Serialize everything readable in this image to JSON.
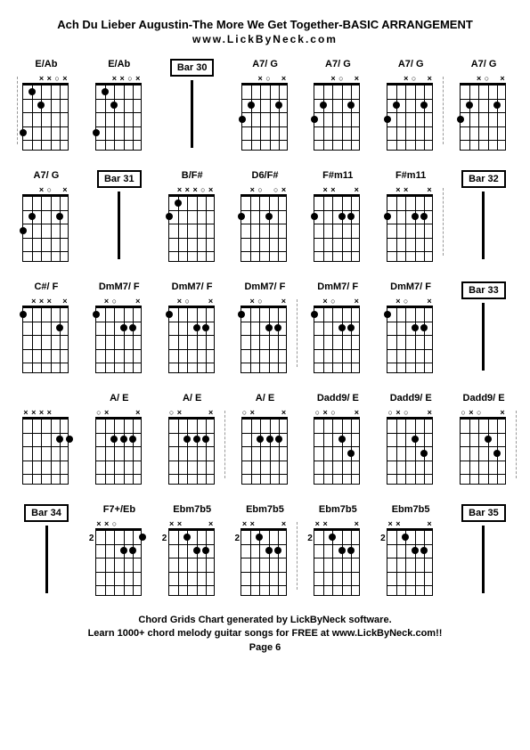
{
  "header": {
    "title": "Ach Du Lieber Augustin-The More We Get Together-BASIC ARRANGEMENT",
    "subtitle": "www.LickByNeck.com"
  },
  "footer": {
    "line1": "Chord Grids Chart generated by LickByNeck software.",
    "line2": "Learn 1000+ chord melody guitar songs for FREE at www.LickByNeck.com!!",
    "line3": "Page 6"
  },
  "rows": [
    [
      {
        "type": "chord",
        "label": "E/Ab",
        "marks": [
          "",
          "",
          "x",
          "x",
          "o",
          "x"
        ],
        "dots": [
          [
            1,
            4
          ],
          [
            2,
            1
          ],
          [
            3,
            2
          ]
        ],
        "dashLeft": true,
        "dashRight": false
      },
      {
        "type": "chord",
        "label": "E/Ab",
        "marks": [
          "",
          "",
          "x",
          "x",
          "o",
          "x"
        ],
        "dots": [
          [
            1,
            4
          ],
          [
            2,
            1
          ],
          [
            3,
            2
          ]
        ],
        "dashLeft": false,
        "dashRight": false
      },
      {
        "type": "bar",
        "label": "Bar 30"
      },
      {
        "type": "chord",
        "label": "A7/ G",
        "marks": [
          "",
          "",
          "x",
          "o",
          "",
          "x"
        ],
        "dots": [
          [
            1,
            3
          ],
          [
            2,
            2
          ],
          [
            5,
            2
          ]
        ],
        "dashLeft": false,
        "dashRight": false
      },
      {
        "type": "chord",
        "label": "A7/ G",
        "marks": [
          "",
          "",
          "x",
          "o",
          "",
          "x"
        ],
        "dots": [
          [
            1,
            3
          ],
          [
            2,
            2
          ],
          [
            5,
            2
          ]
        ],
        "dashLeft": false,
        "dashRight": false
      },
      {
        "type": "chord",
        "label": "A7/ G",
        "marks": [
          "",
          "",
          "x",
          "o",
          "",
          "x"
        ],
        "dots": [
          [
            1,
            3
          ],
          [
            2,
            2
          ],
          [
            5,
            2
          ]
        ],
        "dashLeft": false,
        "dashRight": true
      },
      {
        "type": "chord",
        "label": "A7/ G",
        "marks": [
          "",
          "",
          "x",
          "o",
          "",
          "x"
        ],
        "dots": [
          [
            1,
            3
          ],
          [
            2,
            2
          ],
          [
            5,
            2
          ]
        ],
        "dashLeft": false,
        "dashRight": false
      }
    ],
    [
      {
        "type": "chord",
        "label": "A7/ G",
        "marks": [
          "",
          "",
          "x",
          "o",
          "",
          "x"
        ],
        "dots": [
          [
            1,
            3
          ],
          [
            2,
            2
          ],
          [
            5,
            2
          ]
        ],
        "dashLeft": false,
        "dashRight": false
      },
      {
        "type": "bar",
        "label": "Bar 31"
      },
      {
        "type": "chord",
        "label": "B/F#",
        "marks": [
          "",
          "x",
          "x",
          "x",
          "o",
          "x"
        ],
        "dots": [
          [
            1,
            2
          ],
          [
            2,
            1
          ]
        ],
        "dashLeft": false,
        "dashRight": false
      },
      {
        "type": "chord",
        "label": "D6/F#",
        "marks": [
          "",
          "x",
          "o",
          "",
          "o",
          "x"
        ],
        "dots": [
          [
            1,
            2
          ],
          [
            4,
            2
          ]
        ],
        "dashLeft": false,
        "dashRight": false
      },
      {
        "type": "chord",
        "label": "F#m11",
        "marks": [
          "",
          "x",
          "x",
          "",
          "",
          "x"
        ],
        "dots": [
          [
            1,
            2
          ],
          [
            4,
            2
          ],
          [
            5,
            2
          ]
        ],
        "dashLeft": false,
        "dashRight": false
      },
      {
        "type": "chord",
        "label": "F#m11",
        "marks": [
          "",
          "x",
          "x",
          "",
          "",
          "x"
        ],
        "dots": [
          [
            1,
            2
          ],
          [
            4,
            2
          ],
          [
            5,
            2
          ]
        ],
        "dashLeft": false,
        "dashRight": true
      },
      {
        "type": "bar",
        "label": "Bar 32"
      }
    ],
    [
      {
        "type": "chord",
        "label": "C#/ F",
        "marks": [
          "",
          "x",
          "x",
          "x",
          "",
          "x"
        ],
        "dots": [
          [
            1,
            1
          ],
          [
            5,
            2
          ]
        ],
        "dashLeft": false,
        "dashRight": false
      },
      {
        "type": "chord",
        "label": "DmM7/ F",
        "marks": [
          "",
          "x",
          "o",
          "",
          "",
          "x"
        ],
        "dots": [
          [
            1,
            1
          ],
          [
            4,
            2
          ],
          [
            5,
            2
          ]
        ],
        "dashLeft": false,
        "dashRight": false
      },
      {
        "type": "chord",
        "label": "DmM7/ F",
        "marks": [
          "",
          "x",
          "o",
          "",
          "",
          "x"
        ],
        "dots": [
          [
            1,
            1
          ],
          [
            4,
            2
          ],
          [
            5,
            2
          ]
        ],
        "dashLeft": false,
        "dashRight": false
      },
      {
        "type": "chord",
        "label": "DmM7/ F",
        "marks": [
          "",
          "x",
          "o",
          "",
          "",
          "x"
        ],
        "dots": [
          [
            1,
            1
          ],
          [
            4,
            2
          ],
          [
            5,
            2
          ]
        ],
        "dashLeft": false,
        "dashRight": true
      },
      {
        "type": "chord",
        "label": "DmM7/ F",
        "marks": [
          "",
          "x",
          "o",
          "",
          "",
          "x"
        ],
        "dots": [
          [
            1,
            1
          ],
          [
            4,
            2
          ],
          [
            5,
            2
          ]
        ],
        "dashLeft": false,
        "dashRight": false
      },
      {
        "type": "chord",
        "label": "DmM7/ F",
        "marks": [
          "",
          "x",
          "o",
          "",
          "",
          "x"
        ],
        "dots": [
          [
            1,
            1
          ],
          [
            4,
            2
          ],
          [
            5,
            2
          ]
        ],
        "dashLeft": false,
        "dashRight": false
      },
      {
        "type": "bar",
        "label": "Bar 33"
      }
    ],
    [
      {
        "type": "chord",
        "label": "",
        "marks": [
          "x",
          "x",
          "x",
          "x",
          "",
          ""
        ],
        "dots": [
          [
            5,
            2
          ],
          [
            6,
            2
          ]
        ],
        "dashLeft": false,
        "dashRight": false
      },
      {
        "type": "chord",
        "label": "A/ E",
        "marks": [
          "o",
          "x",
          "",
          "",
          "",
          "x"
        ],
        "dots": [
          [
            3,
            2
          ],
          [
            4,
            2
          ],
          [
            5,
            2
          ]
        ],
        "dashLeft": false,
        "dashRight": false
      },
      {
        "type": "chord",
        "label": "A/ E",
        "marks": [
          "o",
          "x",
          "",
          "",
          "",
          "x"
        ],
        "dots": [
          [
            3,
            2
          ],
          [
            4,
            2
          ],
          [
            5,
            2
          ]
        ],
        "dashLeft": false,
        "dashRight": true
      },
      {
        "type": "chord",
        "label": "A/ E",
        "marks": [
          "o",
          "x",
          "",
          "",
          "",
          "x"
        ],
        "dots": [
          [
            3,
            2
          ],
          [
            4,
            2
          ],
          [
            5,
            2
          ]
        ],
        "dashLeft": false,
        "dashRight": false
      },
      {
        "type": "chord",
        "label": "Dadd9/ E",
        "marks": [
          "o",
          "x",
          "o",
          "",
          "",
          "x"
        ],
        "dots": [
          [
            4,
            2
          ],
          [
            5,
            3
          ]
        ],
        "dashLeft": false,
        "dashRight": false
      },
      {
        "type": "chord",
        "label": "Dadd9/ E",
        "marks": [
          "o",
          "x",
          "o",
          "",
          "",
          "x"
        ],
        "dots": [
          [
            4,
            2
          ],
          [
            5,
            3
          ]
        ],
        "dashLeft": false,
        "dashRight": false
      },
      {
        "type": "chord",
        "label": "Dadd9/ E",
        "marks": [
          "o",
          "x",
          "o",
          "",
          "",
          "x"
        ],
        "dots": [
          [
            4,
            2
          ],
          [
            5,
            3
          ]
        ],
        "dashLeft": false,
        "dashRight": true
      }
    ],
    [
      {
        "type": "bar",
        "label": "Bar 34"
      },
      {
        "type": "chord",
        "label": "F7+/Eb",
        "marks": [
          "x",
          "x",
          "o",
          "",
          "",
          " "
        ],
        "dots": [
          [
            4,
            2
          ],
          [
            5,
            2
          ],
          [
            6,
            1
          ]
        ],
        "fretNum": "2",
        "dashLeft": false,
        "dashRight": false
      },
      {
        "type": "chord",
        "label": "Ebm7b5",
        "marks": [
          "x",
          "x",
          "",
          "",
          "",
          "x"
        ],
        "dots": [
          [
            3,
            1
          ],
          [
            4,
            2
          ],
          [
            5,
            2
          ]
        ],
        "fretNum": "2",
        "dashLeft": false,
        "dashRight": false
      },
      {
        "type": "chord",
        "label": "Ebm7b5",
        "marks": [
          "x",
          "x",
          "",
          "",
          "",
          "x"
        ],
        "dots": [
          [
            3,
            1
          ],
          [
            4,
            2
          ],
          [
            5,
            2
          ]
        ],
        "fretNum": "2",
        "dashLeft": false,
        "dashRight": true
      },
      {
        "type": "chord",
        "label": "Ebm7b5",
        "marks": [
          "x",
          "x",
          "",
          "",
          "",
          "x"
        ],
        "dots": [
          [
            3,
            1
          ],
          [
            4,
            2
          ],
          [
            5,
            2
          ]
        ],
        "fretNum": "2",
        "dashLeft": false,
        "dashRight": false
      },
      {
        "type": "chord",
        "label": "Ebm7b5",
        "marks": [
          "x",
          "x",
          "",
          "",
          "",
          "x"
        ],
        "dots": [
          [
            3,
            1
          ],
          [
            4,
            2
          ],
          [
            5,
            2
          ]
        ],
        "fretNum": "2",
        "dashLeft": false,
        "dashRight": false
      },
      {
        "type": "bar",
        "label": "Bar 35"
      }
    ]
  ],
  "layout": {
    "strings": 6,
    "frets": 5,
    "stringPositions": [
      0,
      10,
      20,
      31,
      41,
      52
    ],
    "fretPositions": [
      0,
      15,
      30,
      46,
      61,
      76
    ],
    "dotStringX": [
      0,
      10,
      20,
      31,
      41,
      52
    ],
    "dotFretY": [
      7,
      22,
      38,
      53,
      68
    ]
  }
}
